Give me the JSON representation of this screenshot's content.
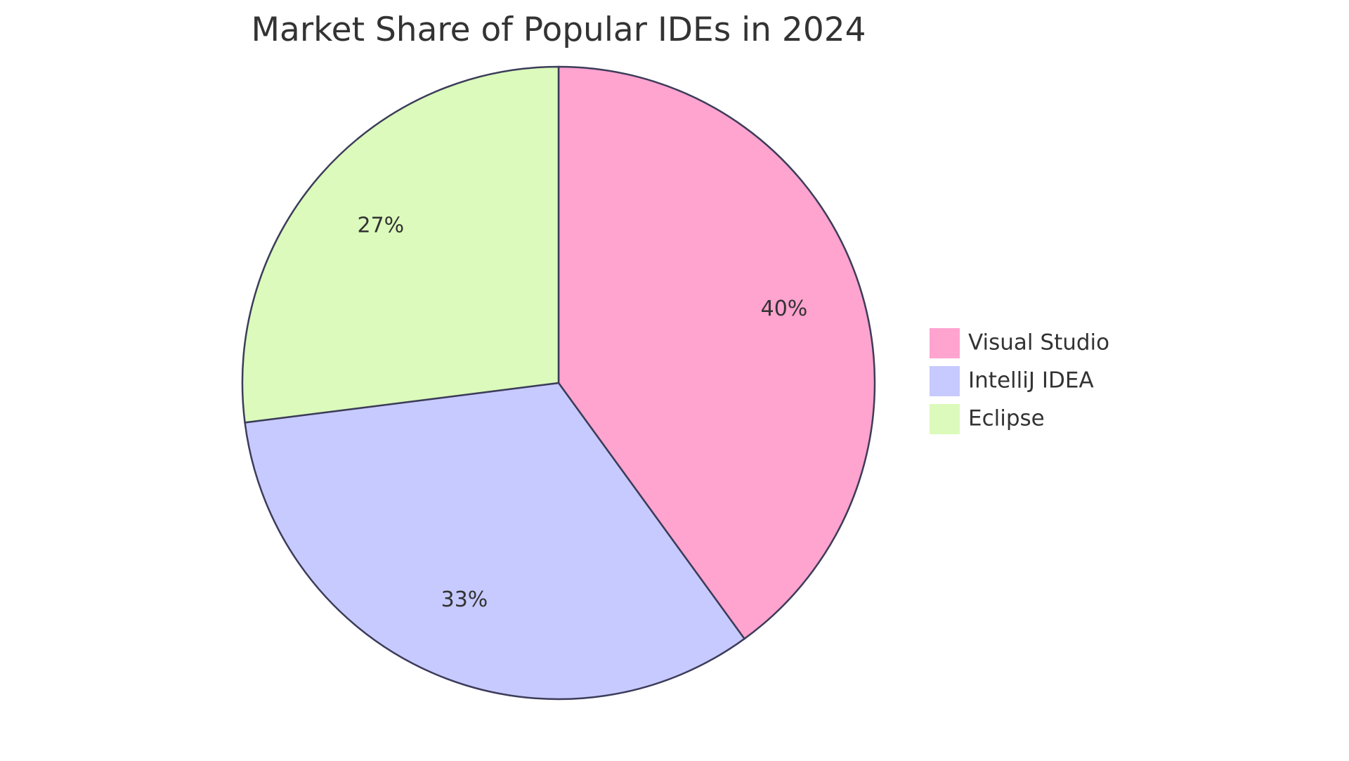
{
  "chart_data": {
    "type": "pie",
    "title": "Market Share of Popular IDEs in 2024",
    "slices": [
      {
        "name": "Visual Studio",
        "value": 40,
        "label": "40%",
        "color": "#ffa3cf"
      },
      {
        "name": "IntelliJ IDEA",
        "value": 33,
        "label": "33%",
        "color": "#c7caff"
      },
      {
        "name": "Eclipse",
        "value": 27,
        "label": "27%",
        "color": "#dbfabb"
      }
    ],
    "legend": {
      "position": "right"
    }
  }
}
